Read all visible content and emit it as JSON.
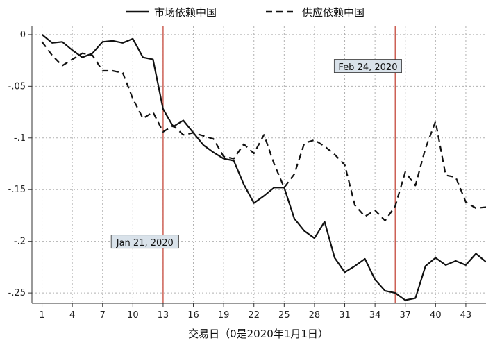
{
  "chart_data": {
    "type": "line",
    "title": "",
    "xlabel": "交易日（0是2020年1月1日）",
    "ylabel": "",
    "xlim": [
      0,
      45
    ],
    "ylim": [
      -0.26,
      0.008
    ],
    "x_ticks": [
      1,
      4,
      7,
      10,
      13,
      16,
      19,
      22,
      25,
      28,
      31,
      34,
      37,
      40,
      43
    ],
    "y_ticks": [
      0,
      -0.05,
      -0.1,
      -0.15,
      -0.2,
      -0.25
    ],
    "y_tick_labels": [
      "0",
      "-.05",
      "-.1",
      "-.15",
      "-.2",
      "-.25"
    ],
    "grid": true,
    "legend_position": "top",
    "x": [
      1,
      2,
      3,
      4,
      5,
      6,
      7,
      8,
      9,
      10,
      11,
      12,
      13,
      14,
      15,
      16,
      17,
      18,
      19,
      20,
      21,
      22,
      23,
      24,
      25,
      26,
      27,
      28,
      29,
      30,
      31,
      32,
      33,
      34,
      35,
      36,
      37,
      38,
      39,
      40,
      41,
      42,
      43,
      44,
      45
    ],
    "series": [
      {
        "name": "市场依赖中国",
        "style": "solid",
        "values": [
          0,
          -0.008,
          -0.007,
          -0.015,
          -0.022,
          -0.018,
          -0.007,
          -0.006,
          -0.008,
          -0.004,
          -0.022,
          -0.024,
          -0.072,
          -0.089,
          -0.083,
          -0.095,
          -0.107,
          -0.114,
          -0.12,
          -0.122,
          -0.145,
          -0.163,
          -0.156,
          -0.148,
          -0.148,
          -0.178,
          -0.19,
          -0.197,
          -0.181,
          -0.216,
          -0.23,
          -0.224,
          -0.217,
          -0.237,
          -0.248,
          -0.25,
          -0.257,
          -0.255,
          -0.224,
          -0.216,
          -0.223,
          -0.219,
          -0.223,
          -0.212,
          -0.22
        ]
      },
      {
        "name": "供应依赖中国",
        "style": "dashed",
        "values": [
          -0.007,
          -0.02,
          -0.03,
          -0.024,
          -0.018,
          -0.02,
          -0.035,
          -0.035,
          -0.037,
          -0.062,
          -0.081,
          -0.075,
          -0.094,
          -0.088,
          -0.097,
          -0.095,
          -0.098,
          -0.101,
          -0.118,
          -0.12,
          -0.106,
          -0.115,
          -0.097,
          -0.125,
          -0.148,
          -0.135,
          -0.105,
          -0.102,
          -0.108,
          -0.116,
          -0.126,
          -0.165,
          -0.176,
          -0.17,
          -0.18,
          -0.166,
          -0.133,
          -0.146,
          -0.11,
          -0.084,
          -0.136,
          -0.138,
          -0.162,
          -0.168,
          -0.167
        ]
      }
    ],
    "vlines": [
      {
        "x": 13,
        "color": "#c0392b",
        "label": "Jan 21, 2020",
        "label_x": 11.2,
        "label_y": -0.201
      },
      {
        "x": 36,
        "color": "#c0392b",
        "label": "Feb 24, 2020",
        "label_x": 33.3,
        "label_y": -0.031
      }
    ],
    "colors": {
      "series": "#111111",
      "grid": "#b0b0b0",
      "vline": "#c0392b",
      "annot_fill": "#d9e2ea"
    }
  }
}
